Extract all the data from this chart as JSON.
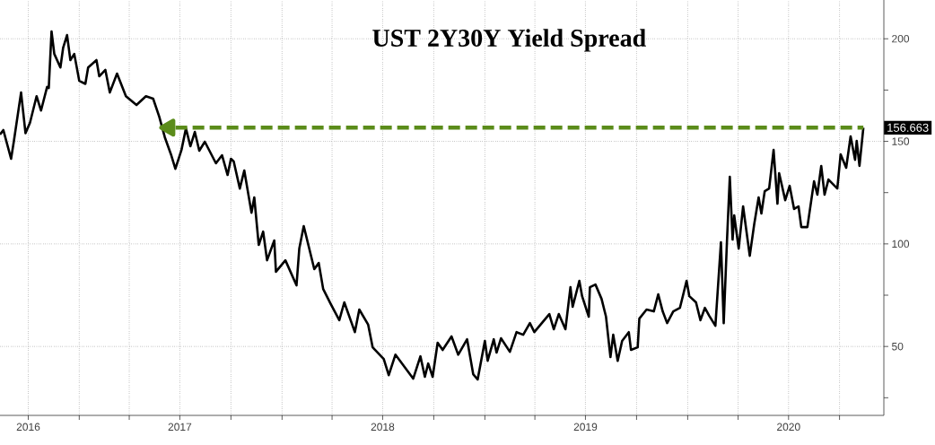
{
  "chart_data": {
    "type": "line",
    "title": "UST 2Y30Y Yield Spread",
    "xlim": [
      "2016-08-11",
      "2020-12-20"
    ],
    "ylim": [
      16.4,
      218.9
    ],
    "xticks": [
      {
        "value": "2016-10-01",
        "label": "2016"
      },
      {
        "value": "2017-01-01",
        "label": null
      },
      {
        "value": "2017-04-01",
        "label": null
      },
      {
        "value": "2017-07-01",
        "label": "2017"
      },
      {
        "value": "2017-10-01",
        "label": null
      },
      {
        "value": "2018-01-01",
        "label": null
      },
      {
        "value": "2018-04-01",
        "label": null
      },
      {
        "value": "2018-07-01",
        "label": "2018"
      },
      {
        "value": "2018-10-01",
        "label": null
      },
      {
        "value": "2019-01-01",
        "label": null
      },
      {
        "value": "2019-04-01",
        "label": null
      },
      {
        "value": "2019-07-01",
        "label": "2019"
      },
      {
        "value": "2019-10-01",
        "label": null
      },
      {
        "value": "2020-01-01",
        "label": null
      },
      {
        "value": "2020-04-01",
        "label": null
      },
      {
        "value": "2020-07-01",
        "label": "2020"
      },
      {
        "value": "2020-10-01",
        "label": null
      }
    ],
    "yticks": [
      {
        "value": 25,
        "label": null
      },
      50,
      {
        "value": 75,
        "label": null
      },
      100,
      {
        "value": 125,
        "label": null
      },
      150,
      {
        "value": 175,
        "label": null
      },
      200
    ],
    "grid": true,
    "series": [
      {
        "color": "#000000",
        "x": [
          "2016-08-11",
          "2016-08-17",
          "2016-08-31",
          "2016-09-05",
          "2016-09-18",
          "2016-09-26",
          "2016-10-04",
          "2016-10-16",
          "2016-10-24",
          "2016-11-04",
          "2016-11-07",
          "2016-11-12",
          "2016-11-17",
          "2016-11-28",
          "2016-12-03",
          "2016-12-10",
          "2016-12-16",
          "2016-12-23",
          "2017-01-01",
          "2017-01-12",
          "2017-01-17",
          "2017-02-01",
          "2017-02-06",
          "2017-02-17",
          "2017-02-25",
          "2017-03-10",
          "2017-03-26",
          "2017-04-14",
          "2017-05-01",
          "2017-05-14",
          "2017-05-25",
          "2017-06-04",
          "2017-06-15",
          "2017-06-23",
          "2017-07-04",
          "2017-07-12",
          "2017-07-20",
          "2017-07-28",
          "2017-08-05",
          "2017-08-15",
          "2017-09-04",
          "2017-09-15",
          "2017-09-25",
          "2017-10-01",
          "2017-10-06",
          "2017-10-17",
          "2017-10-25",
          "2017-11-07",
          "2017-11-12",
          "2017-11-20",
          "2017-11-28",
          "2017-12-05",
          "2017-12-18",
          "2017-12-21",
          "2018-01-07",
          "2018-01-27",
          "2018-02-01",
          "2018-02-09",
          "2018-02-28",
          "2018-03-08",
          "2018-03-16",
          "2018-03-29",
          "2018-04-14",
          "2018-04-23",
          "2018-05-12",
          "2018-05-20",
          "2018-06-05",
          "2018-06-13",
          "2018-07-03",
          "2018-07-12",
          "2018-07-24",
          "2018-08-25",
          "2018-09-07",
          "2018-09-15",
          "2018-09-21",
          "2018-09-29",
          "2018-10-08",
          "2018-10-17",
          "2018-11-02",
          "2018-11-14",
          "2018-11-30",
          "2018-12-11",
          "2018-12-19",
          "2019-01-01",
          "2019-01-06",
          "2019-01-17",
          "2019-01-22",
          "2019-01-30",
          "2019-02-15",
          "2019-02-27",
          "2019-03-11",
          "2019-03-23",
          "2019-03-31",
          "2019-04-27",
          "2019-05-05",
          "2019-05-14",
          "2019-05-26",
          "2019-06-04",
          "2019-06-08",
          "2019-06-20",
          "2019-06-25",
          "2019-07-07",
          "2019-07-09",
          "2019-07-19",
          "2019-07-30",
          "2019-08-07",
          "2019-08-15",
          "2019-08-20",
          "2019-08-28",
          "2019-09-05",
          "2019-09-17",
          "2019-09-21",
          "2019-10-03",
          "2019-10-06",
          "2019-10-19",
          "2019-11-01",
          "2019-11-09",
          "2019-11-17",
          "2019-11-25",
          "2019-12-06",
          "2019-12-18",
          "2019-12-30",
          "2020-01-04",
          "2020-01-16",
          "2020-01-24",
          "2020-02-01",
          "2020-02-09",
          "2020-02-20",
          "2020-03-01",
          "2020-03-06",
          "2020-03-12",
          "2020-03-17",
          "2020-03-22",
          "2020-03-25",
          "2020-04-02",
          "2020-04-10",
          "2020-04-22",
          "2020-04-30",
          "2020-05-08",
          "2020-05-13",
          "2020-05-19",
          "2020-05-27",
          "2020-06-04",
          "2020-06-11",
          "2020-06-14",
          "2020-06-25",
          "2020-07-03",
          "2020-07-11",
          "2020-07-19",
          "2020-07-24",
          "2020-08-04",
          "2020-08-16",
          "2020-08-22",
          "2020-08-29",
          "2020-09-04",
          "2020-09-11",
          "2020-09-27",
          "2020-10-03",
          "2020-10-13",
          "2020-10-21",
          "2020-10-29",
          "2020-11-01",
          "2020-11-06",
          "2020-11-13"
        ],
        "values": [
          153.3,
          155.5,
          141.5,
          150,
          173.8,
          154,
          159,
          172,
          165,
          176.5,
          176,
          203.6,
          192.6,
          186,
          195.7,
          201.8,
          189.6,
          192.6,
          179.5,
          178,
          186,
          189.6,
          181.7,
          184.8,
          173.8,
          183,
          172,
          167.7,
          172,
          170.8,
          162,
          152,
          143.7,
          136.6,
          145.8,
          156.3,
          147.6,
          154.6,
          145.4,
          149.8,
          139.3,
          143.2,
          133.6,
          141.5,
          140.2,
          127,
          135.8,
          115.2,
          122.7,
          99.5,
          106,
          92,
          101.7,
          86.4,
          92,
          79.8,
          97.7,
          108.7,
          87.7,
          90.7,
          78,
          71,
          62.8,
          71.5,
          57,
          68,
          60.6,
          49.6,
          43.9,
          36,
          46,
          34.3,
          45.2,
          35.2,
          41.7,
          35.2,
          51.8,
          48.3,
          54.9,
          46,
          53.5,
          36.5,
          33.9,
          52.7,
          43,
          53.5,
          47,
          54,
          47.4,
          57,
          55.7,
          61.4,
          57,
          65.8,
          58.4,
          65.8,
          58.4,
          78.9,
          69.3,
          82,
          74.5,
          64.5,
          78.9,
          80.2,
          73.2,
          64.5,
          44.8,
          55.7,
          43,
          52.7,
          57,
          48.3,
          49.6,
          63.6,
          68,
          67.1,
          75.4,
          67.1,
          61.4,
          67.1,
          68.8,
          82,
          74.5,
          71.5,
          62.8,
          68.8,
          64.9,
          60.1,
          100.8,
          61.4,
          102.1,
          132.7,
          102.1,
          113.9,
          97.7,
          118.3,
          94.2,
          109.5,
          122.7,
          114.8,
          125.7,
          127,
          145.8,
          119.6,
          134.5,
          121.3,
          128.3,
          117,
          118.3,
          108.2,
          108.2,
          130.5,
          124,
          138,
          124,
          131.4,
          127,
          143.7,
          137.1,
          152.4,
          141,
          150.2,
          138,
          156.663
        ]
      },
      {
        "color": "#5b8c1a",
        "line_style": "dashed",
        "marker": "triangle",
        "x": [
          "2017-06-12",
          "2020-11-13"
        ],
        "values": [
          156.663,
          156.663
        ]
      }
    ],
    "annotations": [
      {
        "text": "156.663",
        "x": "2020-11-13",
        "y": 156.663
      }
    ]
  }
}
